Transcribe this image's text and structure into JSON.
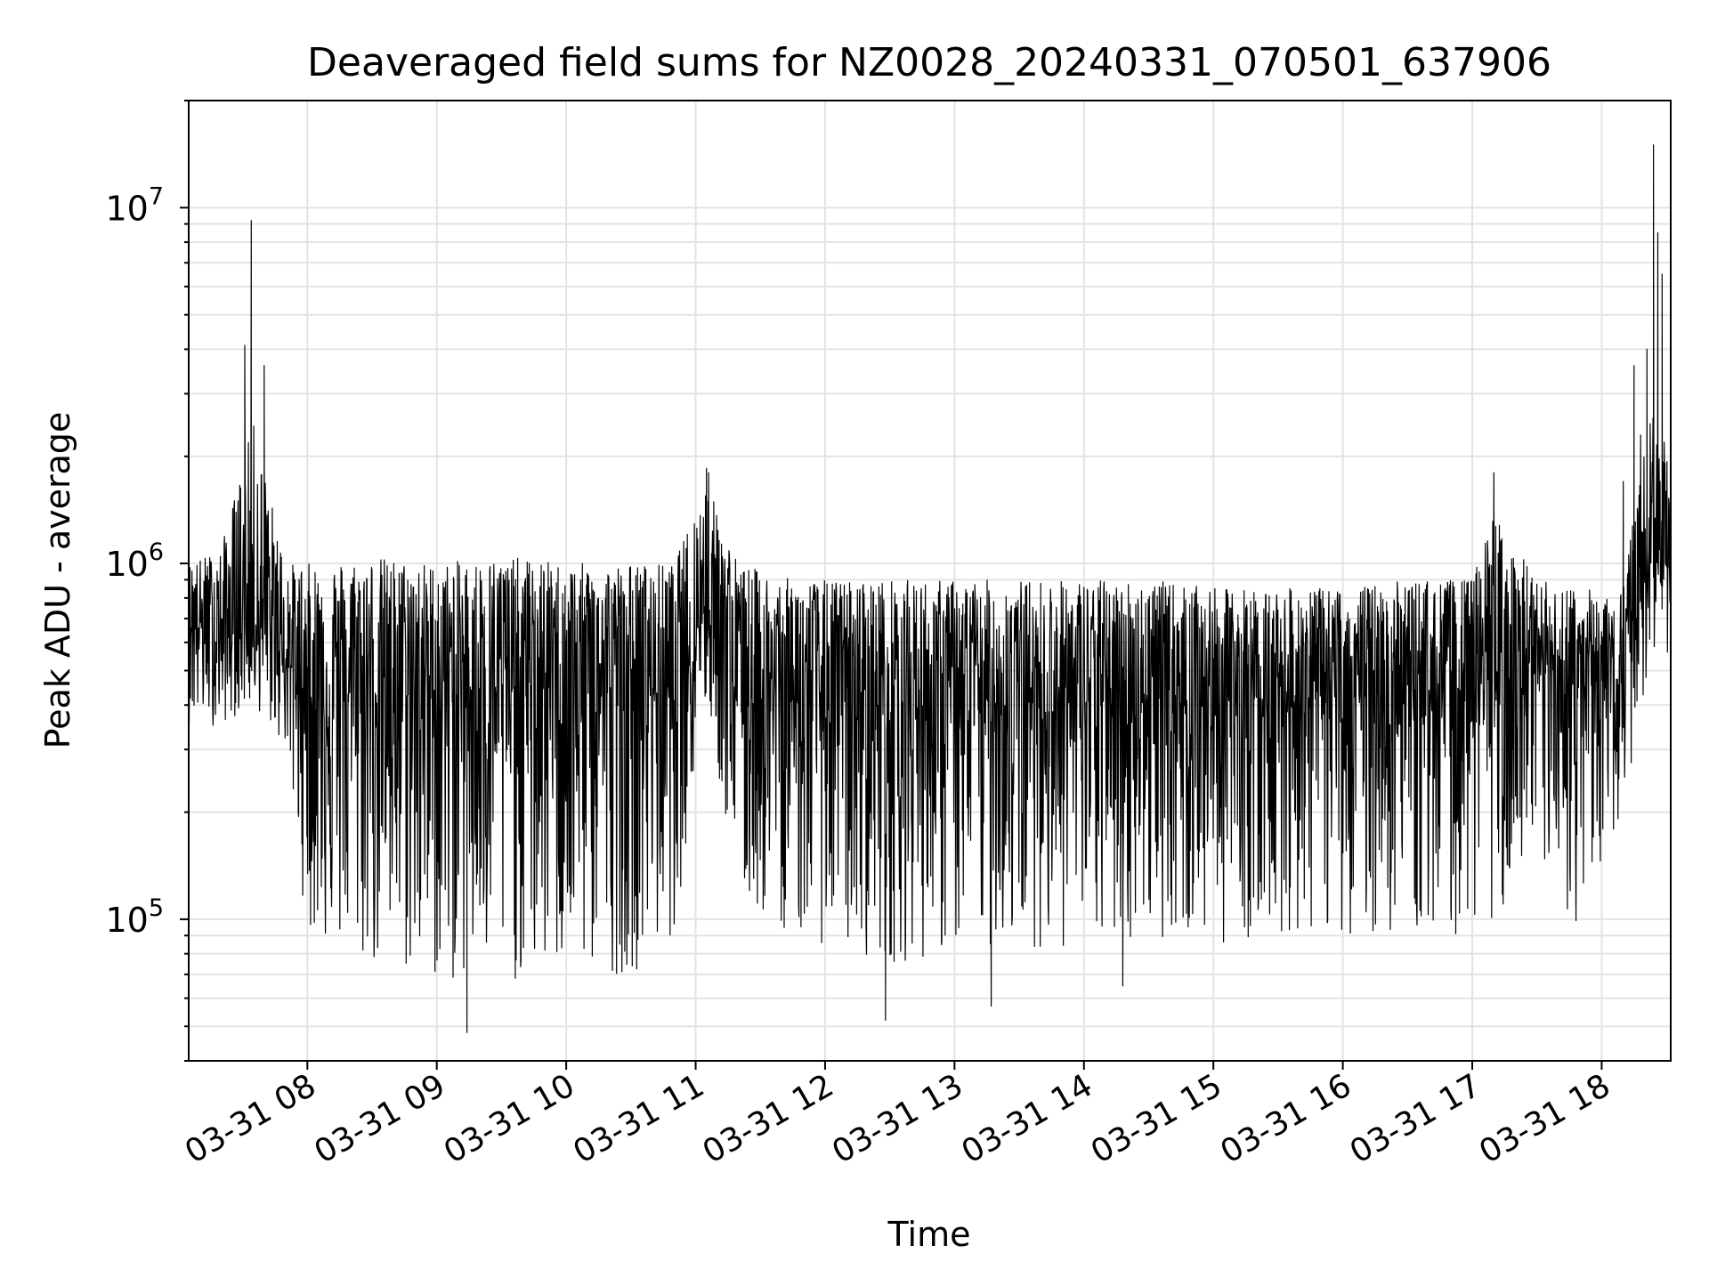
{
  "chart_data": {
    "type": "line",
    "title": "Deaveraged field sums for NZ0028_20240331_070501_637906",
    "xlabel": "Time",
    "ylabel": "Peak ADU - average",
    "yscale": "log",
    "ylim": [
      40000,
      20000000
    ],
    "xlim": [
      "2024-03-31 07:05",
      "2024-03-31 18:32"
    ],
    "grid": true,
    "line_color": "#000000",
    "x_ticks": [
      {
        "t": "2024-03-31 08:00",
        "label": "03-31 08"
      },
      {
        "t": "2024-03-31 09:00",
        "label": "03-31 09"
      },
      {
        "t": "2024-03-31 10:00",
        "label": "03-31 10"
      },
      {
        "t": "2024-03-31 11:00",
        "label": "03-31 11"
      },
      {
        "t": "2024-03-31 12:00",
        "label": "03-31 12"
      },
      {
        "t": "2024-03-31 13:00",
        "label": "03-31 13"
      },
      {
        "t": "2024-03-31 14:00",
        "label": "03-31 14"
      },
      {
        "t": "2024-03-31 15:00",
        "label": "03-31 15"
      },
      {
        "t": "2024-03-31 16:00",
        "label": "03-31 16"
      },
      {
        "t": "2024-03-31 17:00",
        "label": "03-31 17"
      },
      {
        "t": "2024-03-31 18:00",
        "label": "03-31 18"
      }
    ],
    "y_ticks": [
      {
        "value": 100000,
        "base": "10",
        "exp": "5"
      },
      {
        "value": 1000000,
        "base": "10",
        "exp": "6"
      },
      {
        "value": 10000000,
        "base": "10",
        "exp": "7"
      }
    ],
    "envelope": {
      "x": [
        "2024-03-31 07:05",
        "2024-03-31 07:20",
        "2024-03-31 07:35",
        "2024-03-31 07:50",
        "2024-03-31 08:00",
        "2024-03-31 08:30",
        "2024-03-31 09:00",
        "2024-03-31 09:30",
        "2024-03-31 10:00",
        "2024-03-31 10:30",
        "2024-03-31 10:50",
        "2024-03-31 11:05",
        "2024-03-31 11:20",
        "2024-03-31 11:45",
        "2024-03-31 12:30",
        "2024-03-31 13:00",
        "2024-03-31 13:30",
        "2024-03-31 14:00",
        "2024-03-31 14:30",
        "2024-03-31 15:00",
        "2024-03-31 15:30",
        "2024-03-31 16:00",
        "2024-03-31 16:30",
        "2024-03-31 17:00",
        "2024-03-31 17:10",
        "2024-03-31 17:30",
        "2024-03-31 17:50",
        "2024-03-31 18:10",
        "2024-03-31 18:20",
        "2024-03-31 18:32"
      ],
      "upper": [
        1000000,
        1100000,
        2500000,
        1000000,
        1000000,
        1050000,
        1000000,
        1050000,
        1000000,
        1000000,
        1000000,
        1700000,
        1000000,
        900000,
        900000,
        900000,
        900000,
        900000,
        900000,
        850000,
        850000,
        850000,
        900000,
        900000,
        1400000,
        900000,
        850000,
        850000,
        3000000,
        2000000
      ],
      "lower": [
        350000,
        350000,
        400000,
        300000,
        90000,
        70000,
        65000,
        65000,
        70000,
        70000,
        90000,
        400000,
        110000,
        90000,
        75000,
        80000,
        85000,
        80000,
        90000,
        85000,
        90000,
        90000,
        90000,
        90000,
        100000,
        110000,
        95000,
        200000,
        450000,
        550000
      ],
      "median": [
        700000,
        600000,
        700000,
        550000,
        420000,
        440000,
        440000,
        450000,
        450000,
        450000,
        450000,
        800000,
        420000,
        420000,
        400000,
        400000,
        410000,
        410000,
        420000,
        420000,
        430000,
        430000,
        440000,
        450000,
        500000,
        460000,
        460000,
        480000,
        1100000,
        1000000
      ]
    },
    "spikes": [
      {
        "t": "2024-03-31 07:34",
        "value": 9200000
      },
      {
        "t": "2024-03-31 07:31",
        "value": 4100000
      },
      {
        "t": "2024-03-31 07:40",
        "value": 3600000
      },
      {
        "t": "2024-03-31 11:05",
        "value": 1850000
      },
      {
        "t": "2024-03-31 11:06",
        "value": 1800000
      },
      {
        "t": "2024-03-31 17:10",
        "value": 1800000
      },
      {
        "t": "2024-03-31 18:15",
        "value": 3600000
      },
      {
        "t": "2024-03-31 18:21",
        "value": 4000000
      },
      {
        "t": "2024-03-31 18:24",
        "value": 15000000
      },
      {
        "t": "2024-03-31 18:26",
        "value": 8500000
      },
      {
        "t": "2024-03-31 18:28",
        "value": 6500000
      },
      {
        "t": "2024-03-31 18:10",
        "value": 1700000
      },
      {
        "t": "2024-03-31 09:14",
        "value": 48000
      },
      {
        "t": "2024-03-31 12:28",
        "value": 52000
      },
      {
        "t": "2024-03-31 13:17",
        "value": 57000
      },
      {
        "t": "2024-03-31 14:18",
        "value": 65000
      }
    ]
  }
}
